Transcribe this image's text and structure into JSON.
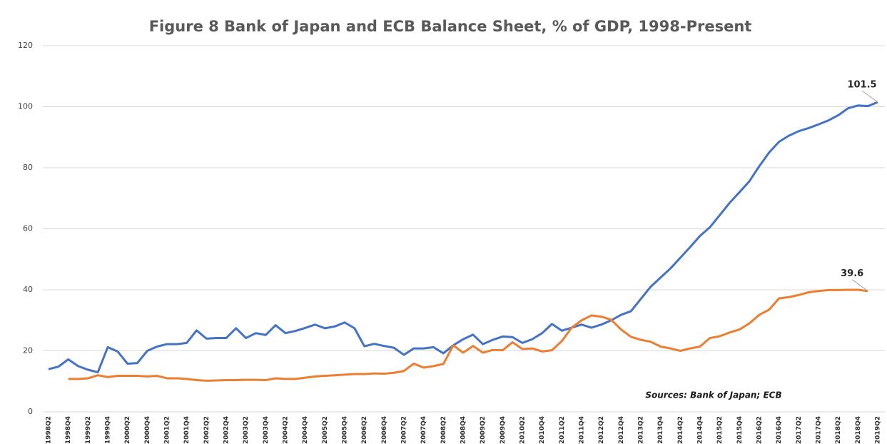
{
  "chart_data": {
    "type": "line",
    "title": "Figure 8   Bank of Japan and ECB Balance Sheet, % of GDP, 1998-Present",
    "annotation": "Sources: Bank of Japan; ECB",
    "categories": [
      "1998Q2",
      null,
      "1998Q4",
      null,
      "1999Q2",
      null,
      "1999Q4",
      null,
      "2000Q2",
      null,
      "2000Q4",
      null,
      "2001Q2",
      null,
      "2001Q4",
      null,
      "2002Q2",
      null,
      "2002Q4",
      null,
      "2003Q2",
      null,
      "2003Q4",
      null,
      "2004Q2",
      null,
      "2004Q4",
      null,
      "2005Q2",
      null,
      "2005Q4",
      null,
      "2006Q2",
      null,
      "2006Q4",
      null,
      "2007Q2",
      null,
      "2007Q4",
      null,
      "2008Q2",
      null,
      "2008Q4",
      null,
      "2009Q2",
      null,
      "2009Q4",
      null,
      "2010Q2",
      null,
      "2010Q4",
      null,
      "2011Q2",
      null,
      "2011Q4",
      null,
      "2012Q2",
      null,
      "2012Q4",
      null,
      "2013Q2",
      null,
      "2013Q4",
      null,
      "2014Q2",
      null,
      "2014Q4",
      null,
      "2015Q2",
      null,
      "2015Q4",
      null,
      "2016Q2",
      null,
      "2016Q4",
      null,
      "2017Q2",
      null,
      "2017Q4",
      null,
      "2018Q2",
      null,
      "2018Q4",
      null,
      "2019Q2"
    ],
    "series": [
      {
        "color": "#4472c4",
        "values": [
          14,
          14.8,
          17.2,
          15,
          13.8,
          13,
          21.2,
          19.8,
          15.8,
          16,
          20,
          21.4,
          22.2,
          22.2,
          22.6,
          26.7,
          24,
          24.2,
          24.2,
          27.4,
          24.2,
          25.8,
          25.2,
          28.4,
          25.8,
          26.5,
          27.5,
          28.6,
          27.4,
          28,
          29.3,
          27.4,
          21.5,
          22.3,
          21.6,
          21,
          18.7,
          20.8,
          20.8,
          21.2,
          19.2,
          21.8,
          23.8,
          25.3,
          22.2,
          23.6,
          24.7,
          24.5,
          22.6,
          23.8,
          25.8,
          28.8,
          26.6,
          27.6,
          28.6,
          27.6,
          28.6,
          30,
          31.8,
          33,
          37,
          41,
          44,
          47,
          50.5,
          54,
          57.7,
          60.5,
          64.5,
          68.5,
          72,
          75.6,
          80.5,
          85,
          88.5,
          90.5,
          92,
          93,
          94.2,
          95.5,
          97.2,
          99.5,
          100.4,
          100.2,
          101.5
        ]
      },
      {
        "color": "#ed7d31",
        "values": [
          null,
          null,
          10.8,
          10.8,
          11,
          12,
          11.4,
          11.8,
          11.8,
          11.8,
          11.6,
          11.8,
          11,
          11,
          10.8,
          10.4,
          10.2,
          10.3,
          10.4,
          10.4,
          10.5,
          10.5,
          10.4,
          11,
          10.8,
          10.8,
          11.2,
          11.6,
          11.8,
          12,
          12.2,
          12.4,
          12.4,
          12.6,
          12.5,
          12.8,
          13.4,
          15.8,
          14.5,
          15,
          15.7,
          21.8,
          19.4,
          21.6,
          19.4,
          20.3,
          20.2,
          22.8,
          20.6,
          20.8,
          19.8,
          20.2,
          23.2,
          27.6,
          30,
          31.6,
          31.2,
          30.2,
          27,
          24.6,
          23.6,
          23,
          21.4,
          20.8,
          20,
          20.8,
          21.4,
          24.2,
          24.8,
          26,
          27,
          29,
          31.8,
          33.5,
          37.2,
          37.6,
          38.3,
          39.2,
          39.6,
          39.9,
          39.9,
          40,
          40,
          39.6,
          null
        ]
      }
    ],
    "ylim": [
      0,
      120
    ],
    "yticks": [
      0,
      20,
      40,
      60,
      80,
      100,
      120
    ],
    "grid": true
  }
}
